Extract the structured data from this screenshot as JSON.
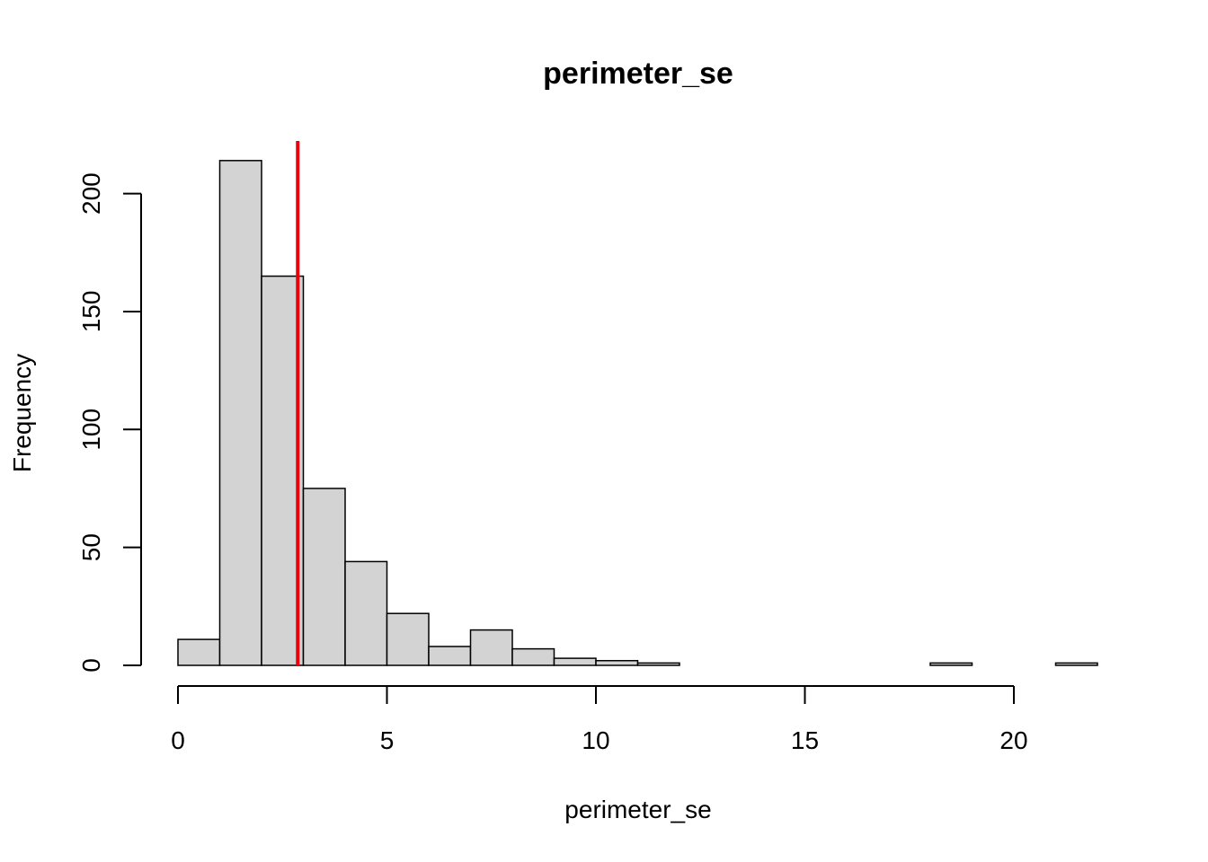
{
  "chart_data": {
    "type": "bar",
    "title": "perimeter_se",
    "xlabel": "perimeter_se",
    "ylabel": "Frequency",
    "bin_edges": [
      0,
      1,
      2,
      3,
      4,
      5,
      6,
      7,
      8,
      9,
      10,
      11,
      12,
      13,
      14,
      15,
      16,
      17,
      18,
      19,
      20,
      21,
      22
    ],
    "values": [
      11,
      214,
      165,
      75,
      44,
      22,
      8,
      15,
      7,
      3,
      2,
      1,
      0,
      0,
      0,
      0,
      0,
      0,
      1,
      0,
      0,
      1
    ],
    "xlim": [
      0,
      22
    ],
    "ylim": [
      0,
      220
    ],
    "x_ticks": [
      0,
      5,
      10,
      15,
      20
    ],
    "y_ticks": [
      0,
      50,
      100,
      150,
      200
    ],
    "x_tick_labels": [
      "0",
      "5",
      "10",
      "15",
      "20"
    ],
    "y_tick_labels": [
      "0",
      "50",
      "100",
      "150",
      "200"
    ],
    "reference_line": {
      "x": 2.866,
      "color": "#e8000b"
    },
    "bar_fill": "#d3d3d3",
    "grid": false
  }
}
